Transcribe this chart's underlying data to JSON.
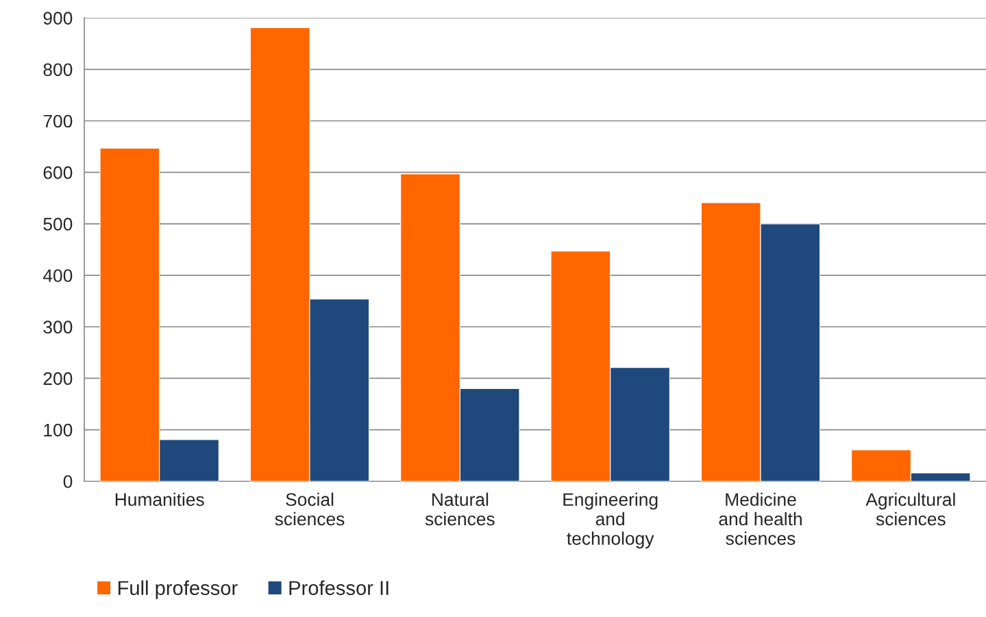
{
  "chart_data": {
    "type": "bar",
    "categories": [
      "Humanities",
      "Social\nsciences",
      "Natural\nsciences",
      "Engineering\nand\ntechnology",
      "Medicine\nand health\nsciences",
      "Agricultural\nsciences"
    ],
    "series": [
      {
        "name": "Full professor",
        "color": "#ff6600",
        "values": [
          647,
          881,
          597,
          447,
          541,
          61
        ]
      },
      {
        "name": "Professor II",
        "color": "#1f497d",
        "values": [
          81,
          354,
          180,
          221,
          500,
          16
        ]
      }
    ],
    "ylim": [
      0,
      900
    ],
    "yticks": [
      0,
      100,
      200,
      300,
      400,
      500,
      600,
      700,
      800,
      900
    ],
    "grid": "y",
    "legend": "bottom left"
  }
}
